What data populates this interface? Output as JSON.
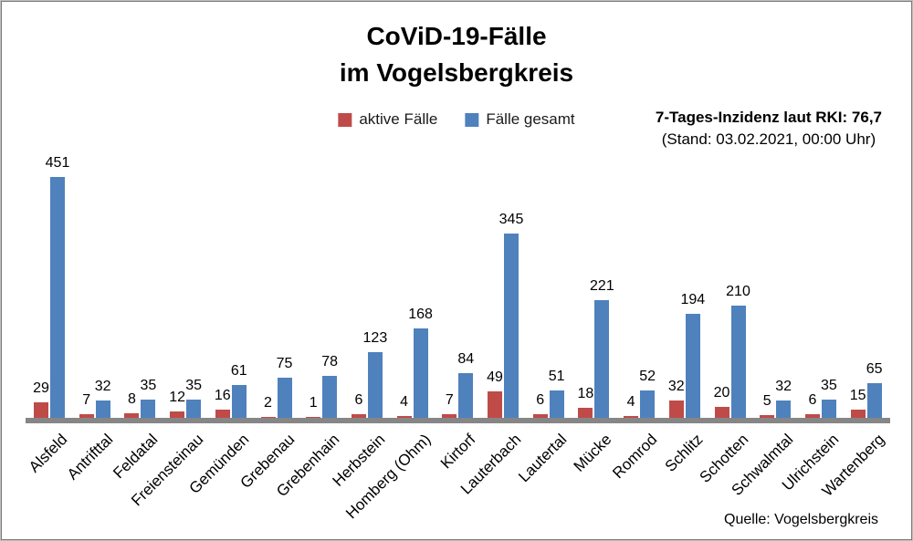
{
  "title": {
    "line1": "CoViD-19-Fälle",
    "line2": "im Vogelsbergkreis"
  },
  "legend": [
    {
      "label": "aktive Fälle",
      "color": "#BE4B48"
    },
    {
      "label": "Fälle gesamt",
      "color": "#4F81BD"
    }
  ],
  "annotation": {
    "line1": "7-Tages-Inzidenz laut RKI: 76,7",
    "line2": "(Stand: 03.02.2021, 00:00 Uhr)"
  },
  "source": "Quelle: Vogelsbergkreis",
  "colors": {
    "active": "#BE4B48",
    "total": "#4F81BD",
    "axis": "#868686"
  },
  "chart_data": {
    "type": "bar",
    "title": "CoViD-19-Fälle im Vogelsbergkreis",
    "categories": [
      "Alsfeld",
      "Antrifttal",
      "Feldatal",
      "Freiensteinau",
      "Gemünden",
      "Grebenau",
      "Grebenhain",
      "Herbstein",
      "Homberg (Ohm)",
      "Kirtorf",
      "Lauterbach",
      "Lautertal",
      "Mücke",
      "Romrod",
      "Schlitz",
      "Schotten",
      "Schwalmtal",
      "Ulrichstein",
      "Wartenberg"
    ],
    "series": [
      {
        "name": "aktive Fälle",
        "color": "#BE4B48",
        "values": [
          29,
          7,
          8,
          12,
          16,
          2,
          1,
          6,
          4,
          7,
          49,
          6,
          18,
          4,
          32,
          20,
          5,
          6,
          15
        ]
      },
      {
        "name": "Fälle gesamt",
        "color": "#4F81BD",
        "values": [
          451,
          32,
          35,
          35,
          61,
          75,
          78,
          123,
          168,
          84,
          345,
          51,
          221,
          52,
          194,
          210,
          32,
          35,
          65
        ]
      }
    ],
    "ylim": [
      0,
      451
    ],
    "grid": false,
    "legend_position": "top",
    "data_labels": true,
    "xlabel": "",
    "ylabel": ""
  }
}
